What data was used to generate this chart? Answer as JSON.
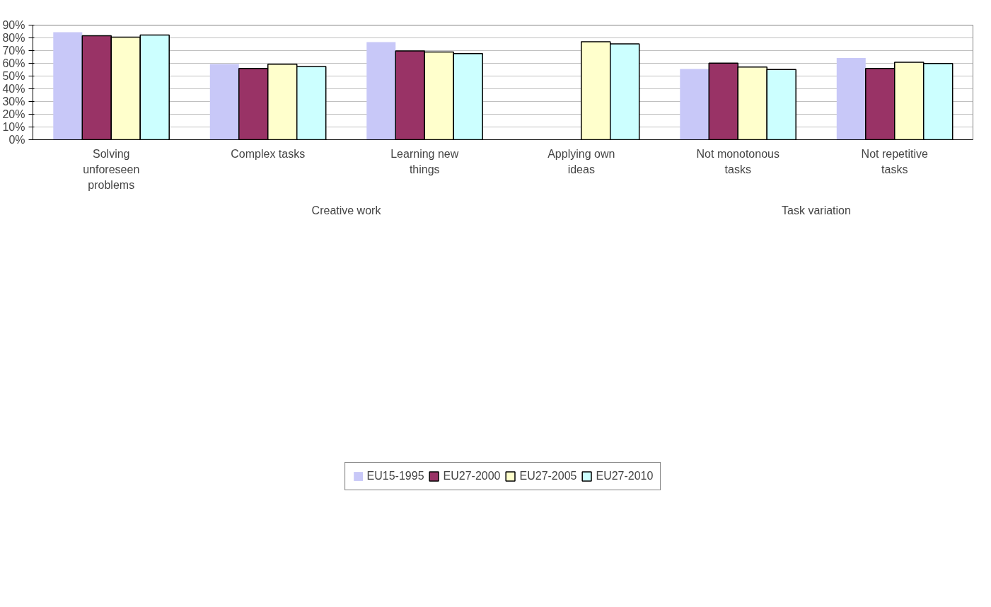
{
  "chart_data": {
    "type": "bar",
    "categories": [
      "Solving unforeseen problems",
      "Complex tasks",
      "Learning new things",
      "Applying own ideas",
      "Not monotonous tasks",
      "Not repetitive tasks"
    ],
    "series": [
      {
        "name": "EU15-1995",
        "color": "#c8c8f8",
        "values": [
          84.5,
          59.4,
          76.6,
          null,
          55.6,
          64.1
        ]
      },
      {
        "name": "EU27-2000",
        "color": "#993366",
        "values": [
          81.6,
          56.0,
          69.7,
          null,
          60.1,
          56.0
        ]
      },
      {
        "name": "EU27-2005",
        "color": "#ffffcc",
        "values": [
          80.6,
          59.3,
          68.9,
          77.0,
          57.1,
          60.9
        ]
      },
      {
        "name": "EU27-2010",
        "color": "#ccffff",
        "values": [
          82.2,
          57.5,
          67.7,
          75.3,
          55.2,
          59.8
        ]
      }
    ],
    "annotations": [
      "Creative work",
      "Task variation"
    ],
    "ylim": [
      0,
      90
    ],
    "yticks": [
      {
        "value": 0,
        "label": "0%"
      },
      {
        "value": 10,
        "label": "10%"
      },
      {
        "value": 20,
        "label": "20%"
      },
      {
        "value": 30,
        "label": "30%"
      },
      {
        "value": 40,
        "label": "40%"
      },
      {
        "value": 50,
        "label": "50%"
      },
      {
        "value": 60,
        "label": "60%"
      },
      {
        "value": 70,
        "label": "70%"
      },
      {
        "value": 80,
        "label": "80%"
      },
      {
        "value": 90,
        "label": "90%"
      }
    ],
    "grid": "y",
    "legend": "bottom"
  }
}
